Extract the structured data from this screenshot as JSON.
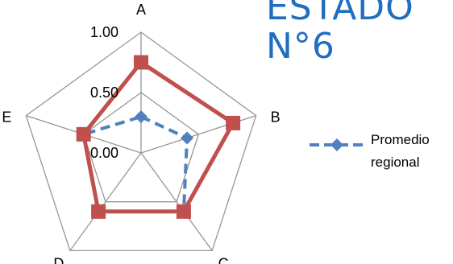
{
  "title": [
    "ESTADO",
    "N°6"
  ],
  "chart_data": {
    "type": "radar",
    "categories": [
      "A",
      "B",
      "C",
      "D",
      "E"
    ],
    "rlim": [
      0,
      1
    ],
    "ticks": [
      0.0,
      0.5,
      1.0
    ],
    "tick_labels": [
      "0.00",
      "0.50",
      "1.00"
    ],
    "grid": true,
    "legend_position": "right",
    "series": [
      {
        "name": "Promedio regional",
        "values": [
          0.3,
          0.4,
          0.6,
          0.6,
          0.5
        ],
        "color": "#4f81bd",
        "marker": "diamond",
        "line": "dashed"
      },
      {
        "name": "",
        "values": [
          0.75,
          0.8,
          0.6,
          0.6,
          0.5
        ],
        "color": "#c0504d",
        "marker": "square",
        "line": "solid"
      }
    ]
  },
  "legend": {
    "label_line_1": "Promedio",
    "label_line_2": "regional"
  },
  "colors": {
    "title": "#1f6fc0",
    "grid": "#969696"
  }
}
